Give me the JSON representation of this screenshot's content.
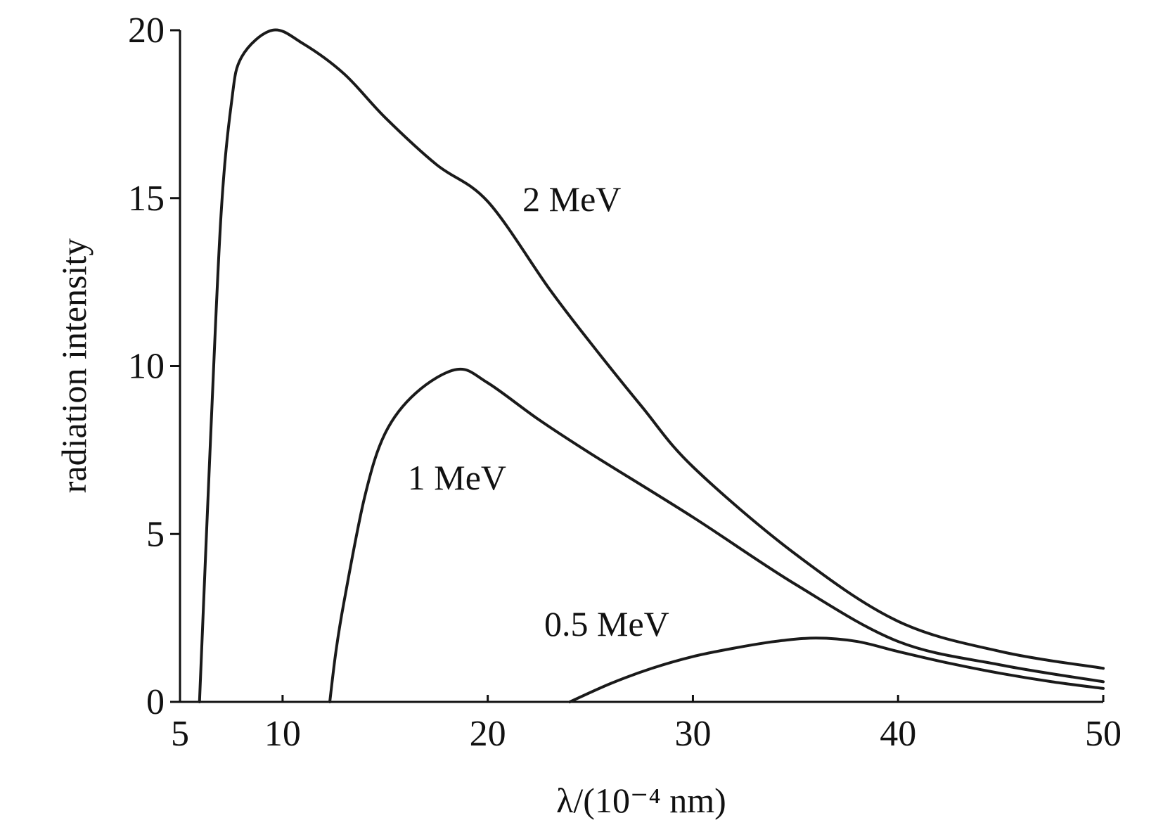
{
  "chart_data": {
    "type": "line",
    "title": "",
    "xlabel": "λ/(10⁻⁴ nm)",
    "ylabel": "radiation intensity",
    "xlim": [
      5,
      50
    ],
    "ylim": [
      0,
      20
    ],
    "xticks": [
      5,
      10,
      20,
      30,
      40,
      50
    ],
    "yticks": [
      0,
      5,
      10,
      15,
      20
    ],
    "grid": false,
    "series": [
      {
        "name": "2 MeV",
        "label_at": [
          24.1,
          15.0
        ],
        "x": [
          5.95,
          6.5,
          7.0,
          7.5,
          8.0,
          9.5,
          11,
          13,
          15,
          17.5,
          20,
          23,
          25,
          27.5,
          30,
          35,
          40,
          45,
          50
        ],
        "y": [
          0,
          8.0,
          14.5,
          17.8,
          19.2,
          20.0,
          19.6,
          18.7,
          17.4,
          16.0,
          14.9,
          12.3,
          10.7,
          8.8,
          7.0,
          4.4,
          2.4,
          1.5,
          1.0
        ]
      },
      {
        "name": "1 MeV",
        "label_at": [
          18.5,
          6.7
        ],
        "x": [
          12.3,
          12.6,
          13,
          14,
          15,
          16.5,
          18.5,
          20,
          22.5,
          25,
          30,
          35,
          40,
          45,
          50
        ],
        "y": [
          0,
          1.5,
          3.0,
          6.1,
          8.0,
          9.2,
          9.9,
          9.5,
          8.4,
          7.4,
          5.5,
          3.5,
          1.8,
          1.1,
          0.6
        ]
      },
      {
        "name": "0.5 MeV",
        "label_at": [
          25.8,
          2.35
        ],
        "x": [
          24,
          26,
          28,
          30,
          32,
          34,
          36,
          38,
          40,
          42.5,
          45,
          47.5,
          50
        ],
        "y": [
          0,
          0.55,
          1.0,
          1.35,
          1.6,
          1.8,
          1.9,
          1.8,
          1.5,
          1.15,
          0.85,
          0.6,
          0.4
        ]
      }
    ]
  }
}
